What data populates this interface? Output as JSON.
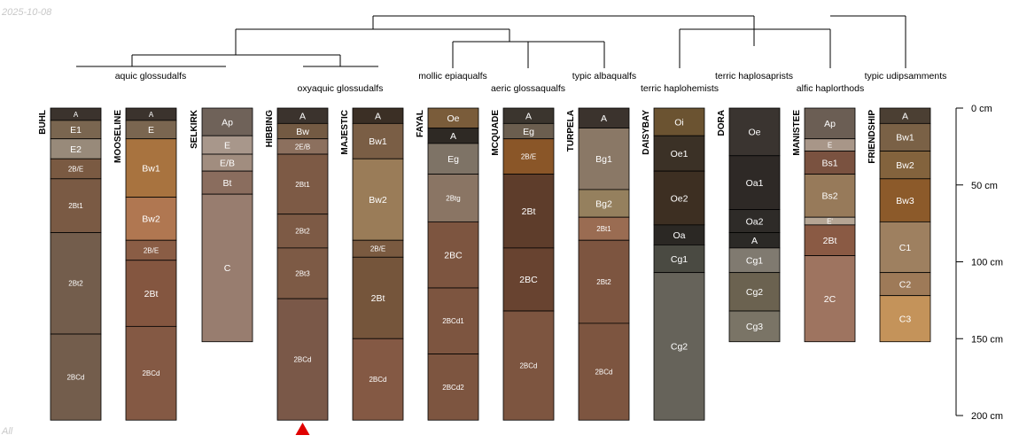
{
  "date_stamp": "2025-10-08",
  "corner_note": "All",
  "dendrogram": {
    "group_labels": [
      "aquic glossudalfs",
      "oxyaquic glossudalfs",
      "mollic epiaqualfs",
      "aeric glossaqualfs",
      "typic albaqualfs",
      "terric haplohemists",
      "terric haplosaprists",
      "alfic haplorthods",
      "typic udipsamments"
    ]
  },
  "depth_axis": {
    "unit": "cm",
    "max": 200,
    "ticks": [
      {
        "value": 0,
        "label": "0 cm"
      },
      {
        "value": 50,
        "label": "50 cm"
      },
      {
        "value": 100,
        "label": "100 cm"
      },
      {
        "value": 150,
        "label": "150 cm"
      },
      {
        "value": 200,
        "label": "200 cm"
      }
    ]
  },
  "marker": {
    "profile": "HIBBING",
    "color": "#e00000"
  },
  "profiles": [
    {
      "name": "BUHL",
      "horizons": [
        {
          "name": "A",
          "top": 0,
          "bottom": 8,
          "color": "#3b332d"
        },
        {
          "name": "E1",
          "top": 8,
          "bottom": 20,
          "color": "#7a6650"
        },
        {
          "name": "E2",
          "top": 20,
          "bottom": 33,
          "color": "#988a7a"
        },
        {
          "name": "2B/E",
          "top": 33,
          "bottom": 46,
          "color": "#7a5a42"
        },
        {
          "name": "2Bt1",
          "top": 46,
          "bottom": 81,
          "color": "#7a5a44"
        },
        {
          "name": "2Bt2",
          "top": 81,
          "bottom": 147,
          "color": "#735d4c"
        },
        {
          "name": "2BCd",
          "top": 147,
          "bottom": 203,
          "color": "#735d4c"
        }
      ]
    },
    {
      "name": "MOOSELINE",
      "horizons": [
        {
          "name": "A",
          "top": 0,
          "bottom": 8,
          "color": "#3b332d"
        },
        {
          "name": "E",
          "top": 8,
          "bottom": 20,
          "color": "#7a6650"
        },
        {
          "name": "Bw1",
          "top": 20,
          "bottom": 58,
          "color": "#a8733f"
        },
        {
          "name": "Bw2",
          "top": 58,
          "bottom": 86,
          "color": "#b07751"
        },
        {
          "name": "2B/E",
          "top": 86,
          "bottom": 99,
          "color": "#8a5d45"
        },
        {
          "name": "2Bt",
          "top": 99,
          "bottom": 142,
          "color": "#845640"
        },
        {
          "name": "2BCd",
          "top": 142,
          "bottom": 203,
          "color": "#845944"
        }
      ]
    },
    {
      "name": "SELKIRK",
      "horizons": [
        {
          "name": "Ap",
          "top": 0,
          "bottom": 18,
          "color": "#6f6259"
        },
        {
          "name": "E",
          "top": 18,
          "bottom": 30,
          "color": "#a8978b"
        },
        {
          "name": "E/B",
          "top": 30,
          "bottom": 41,
          "color": "#a18d7f"
        },
        {
          "name": "Bt",
          "top": 41,
          "bottom": 56,
          "color": "#8a6d5e"
        },
        {
          "name": "C",
          "top": 56,
          "bottom": 152,
          "color": "#987d6f"
        }
      ]
    },
    {
      "name": "HIBBING",
      "horizons": [
        {
          "name": "A",
          "top": 0,
          "bottom": 10,
          "color": "#3b332d"
        },
        {
          "name": "Bw",
          "top": 10,
          "bottom": 20,
          "color": "#735a43"
        },
        {
          "name": "2E/B",
          "top": 20,
          "bottom": 30,
          "color": "#8c705e"
        },
        {
          "name": "2Bt1",
          "top": 30,
          "bottom": 69,
          "color": "#7d5a45"
        },
        {
          "name": "2Bt2",
          "top": 69,
          "bottom": 91,
          "color": "#7d5a45"
        },
        {
          "name": "2Bt3",
          "top": 91,
          "bottom": 124,
          "color": "#7d5a45"
        },
        {
          "name": "2BCd",
          "top": 124,
          "bottom": 203,
          "color": "#7a5848"
        }
      ]
    },
    {
      "name": "MAJESTIC",
      "horizons": [
        {
          "name": "A",
          "top": 0,
          "bottom": 10,
          "color": "#3b2f25"
        },
        {
          "name": "Bw1",
          "top": 10,
          "bottom": 33,
          "color": "#7a5e45"
        },
        {
          "name": "Bw2",
          "top": 33,
          "bottom": 86,
          "color": "#9a7c58"
        },
        {
          "name": "2B/E",
          "top": 86,
          "bottom": 97,
          "color": "#7a5a40"
        },
        {
          "name": "2Bt",
          "top": 97,
          "bottom": 150,
          "color": "#75553b"
        },
        {
          "name": "2BCd",
          "top": 150,
          "bottom": 203,
          "color": "#845944"
        }
      ]
    },
    {
      "name": "FAYAL",
      "horizons": [
        {
          "name": "Oe",
          "top": 0,
          "bottom": 13,
          "color": "#7a5c3a"
        },
        {
          "name": "A",
          "top": 13,
          "bottom": 23,
          "color": "#2e2924"
        },
        {
          "name": "Eg",
          "top": 23,
          "bottom": 43,
          "color": "#7e7366"
        },
        {
          "name": "2Btg",
          "top": 43,
          "bottom": 74,
          "color": "#8a7564"
        },
        {
          "name": "2BC",
          "top": 74,
          "bottom": 117,
          "color": "#7d5540"
        },
        {
          "name": "2BCd1",
          "top": 117,
          "bottom": 160,
          "color": "#7d5540"
        },
        {
          "name": "2BCd2",
          "top": 160,
          "bottom": 203,
          "color": "#7d5540"
        }
      ]
    },
    {
      "name": "MCQUADE",
      "horizons": [
        {
          "name": "A",
          "top": 0,
          "bottom": 10,
          "color": "#3b352e"
        },
        {
          "name": "Eg",
          "top": 10,
          "bottom": 20,
          "color": "#6b5e4f"
        },
        {
          "name": "2B/E",
          "top": 20,
          "bottom": 43,
          "color": "#8a5628"
        },
        {
          "name": "2Bt",
          "top": 43,
          "bottom": 91,
          "color": "#5e3d2b"
        },
        {
          "name": "2BC",
          "top": 91,
          "bottom": 132,
          "color": "#684330"
        },
        {
          "name": "2BCd",
          "top": 132,
          "bottom": 203,
          "color": "#7d5540"
        }
      ]
    },
    {
      "name": "TURPELA",
      "horizons": [
        {
          "name": "A",
          "top": 0,
          "bottom": 13,
          "color": "#3b332d"
        },
        {
          "name": "Bg1",
          "top": 13,
          "bottom": 53,
          "color": "#8a7866"
        },
        {
          "name": "Bg2",
          "top": 53,
          "bottom": 71,
          "color": "#95805e"
        },
        {
          "name": "2Bt1",
          "top": 71,
          "bottom": 86,
          "color": "#9a6c52"
        },
        {
          "name": "2Bt2",
          "top": 86,
          "bottom": 140,
          "color": "#7d5540"
        },
        {
          "name": "2BCd",
          "top": 140,
          "bottom": 203,
          "color": "#7d5540"
        }
      ]
    },
    {
      "name": "DAISYBAY",
      "horizons": [
        {
          "name": "Oi",
          "top": 0,
          "bottom": 18,
          "color": "#6b5331"
        },
        {
          "name": "Oe1",
          "top": 18,
          "bottom": 41,
          "color": "#3b3126"
        },
        {
          "name": "Oe2",
          "top": 41,
          "bottom": 76,
          "color": "#3d2f22"
        },
        {
          "name": "Oa",
          "top": 76,
          "bottom": 89,
          "color": "#2b2824"
        },
        {
          "name": "Cg1",
          "top": 89,
          "bottom": 107,
          "color": "#4a4a42"
        },
        {
          "name": "Cg2",
          "top": 107,
          "bottom": 203,
          "color": "#66635a"
        }
      ]
    },
    {
      "name": "DORA",
      "horizons": [
        {
          "name": "Oe",
          "top": 0,
          "bottom": 31,
          "color": "#3a3430"
        },
        {
          "name": "Oa1",
          "top": 31,
          "bottom": 66,
          "color": "#2e2926"
        },
        {
          "name": "Oa2",
          "top": 66,
          "bottom": 81,
          "color": "#2e2b28"
        },
        {
          "name": "A",
          "top": 81,
          "bottom": 91,
          "color": "#2b2926"
        },
        {
          "name": "Cg1",
          "top": 91,
          "bottom": 107,
          "color": "#807a70"
        },
        {
          "name": "Cg2",
          "top": 107,
          "bottom": 132,
          "color": "#6b6250"
        },
        {
          "name": "Cg3",
          "top": 132,
          "bottom": 152,
          "color": "#7a7466"
        }
      ]
    },
    {
      "name": "MANISTEE",
      "horizons": [
        {
          "name": "Ap",
          "top": 0,
          "bottom": 20,
          "color": "#6b5e54"
        },
        {
          "name": "E",
          "top": 20,
          "bottom": 28,
          "color": "#a89688"
        },
        {
          "name": "Bs1",
          "top": 28,
          "bottom": 43,
          "color": "#7a5240"
        },
        {
          "name": "Bs2",
          "top": 43,
          "bottom": 71,
          "color": "#977a5a"
        },
        {
          "name": "E'",
          "top": 71,
          "bottom": 76,
          "color": "#b5a594"
        },
        {
          "name": "2Bt",
          "top": 76,
          "bottom": 96,
          "color": "#8a5a44"
        },
        {
          "name": "2C",
          "top": 96,
          "bottom": 152,
          "color": "#9e7460"
        }
      ]
    },
    {
      "name": "FRIENDSHIP",
      "horizons": [
        {
          "name": "A",
          "top": 0,
          "bottom": 10,
          "color": "#4b3f33"
        },
        {
          "name": "Bw1",
          "top": 10,
          "bottom": 28,
          "color": "#7a6146"
        },
        {
          "name": "Bw2",
          "top": 28,
          "bottom": 46,
          "color": "#83633d"
        },
        {
          "name": "Bw3",
          "top": 46,
          "bottom": 74,
          "color": "#8c5a2a"
        },
        {
          "name": "C1",
          "top": 74,
          "bottom": 107,
          "color": "#9e8060"
        },
        {
          "name": "C2",
          "top": 107,
          "bottom": 122,
          "color": "#9e7a58"
        },
        {
          "name": "C3",
          "top": 122,
          "bottom": 152,
          "color": "#c4935a"
        }
      ]
    }
  ]
}
